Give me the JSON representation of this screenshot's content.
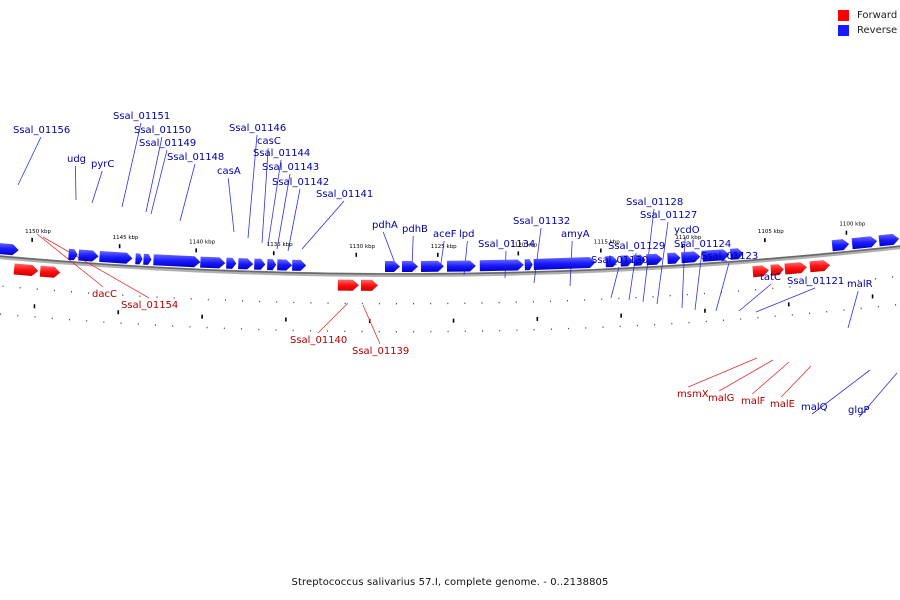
{
  "legend": {
    "forward": {
      "label": "Forward",
      "color": "#ff0000"
    },
    "reverse": {
      "label": "Reverse",
      "color": "#1a1aff"
    }
  },
  "caption": "Streptococcus salivarius 57.I, complete genome. - 0..2138805",
  "scale_labels": [
    "1150 kbp",
    "1145 kbp",
    "1140 kbp",
    "1135 kbp",
    "1130 kbp",
    "1125 kbp",
    "1120 kbp",
    "1115 kbp",
    "1110 kbp",
    "1105 kbp",
    "1100 kbp"
  ],
  "genes": [
    {
      "name": "Ssal_01156",
      "strand": "reverse"
    },
    {
      "name": "udg",
      "strand": "reverse"
    },
    {
      "name": "pyrC",
      "strand": "reverse"
    },
    {
      "name": "Ssal_01151",
      "strand": "reverse"
    },
    {
      "name": "Ssal_01150",
      "strand": "reverse"
    },
    {
      "name": "Ssal_01149",
      "strand": "reverse"
    },
    {
      "name": "Ssal_01148",
      "strand": "reverse"
    },
    {
      "name": "casA",
      "strand": "reverse"
    },
    {
      "name": "Ssal_01146",
      "strand": "reverse"
    },
    {
      "name": "casC",
      "strand": "reverse"
    },
    {
      "name": "Ssal_01144",
      "strand": "reverse"
    },
    {
      "name": "Ssal_01143",
      "strand": "reverse"
    },
    {
      "name": "Ssal_01142",
      "strand": "reverse"
    },
    {
      "name": "Ssal_01141",
      "strand": "reverse"
    },
    {
      "name": "pdhA",
      "strand": "reverse"
    },
    {
      "name": "pdhB",
      "strand": "reverse"
    },
    {
      "name": "aceF",
      "strand": "reverse"
    },
    {
      "name": "lpd",
      "strand": "reverse"
    },
    {
      "name": "Ssal_01134",
      "strand": "reverse"
    },
    {
      "name": "Ssal_01132",
      "strand": "reverse"
    },
    {
      "name": "amyA",
      "strand": "reverse"
    },
    {
      "name": "Ssal_01130",
      "strand": "reverse"
    },
    {
      "name": "Ssal_01129",
      "strand": "reverse"
    },
    {
      "name": "Ssal_01128",
      "strand": "reverse"
    },
    {
      "name": "Ssal_01127",
      "strand": "reverse"
    },
    {
      "name": "ycdO",
      "strand": "reverse"
    },
    {
      "name": "Ssal_01124",
      "strand": "reverse"
    },
    {
      "name": "Ssal_01123",
      "strand": "reverse"
    },
    {
      "name": "tatC",
      "strand": "reverse"
    },
    {
      "name": "Ssal_01121",
      "strand": "reverse"
    },
    {
      "name": "malR",
      "strand": "reverse"
    },
    {
      "name": "glgP",
      "strand": "reverse"
    },
    {
      "name": "malQ",
      "strand": "reverse"
    },
    {
      "name": "dacC",
      "strand": "forward"
    },
    {
      "name": "Ssal_01154",
      "strand": "forward"
    },
    {
      "name": "Ssal_01140",
      "strand": "forward"
    },
    {
      "name": "Ssal_01139",
      "strand": "forward"
    },
    {
      "name": "msmX",
      "strand": "forward"
    },
    {
      "name": "malG",
      "strand": "forward"
    },
    {
      "name": "malF",
      "strand": "forward"
    },
    {
      "name": "malE",
      "strand": "forward"
    }
  ]
}
